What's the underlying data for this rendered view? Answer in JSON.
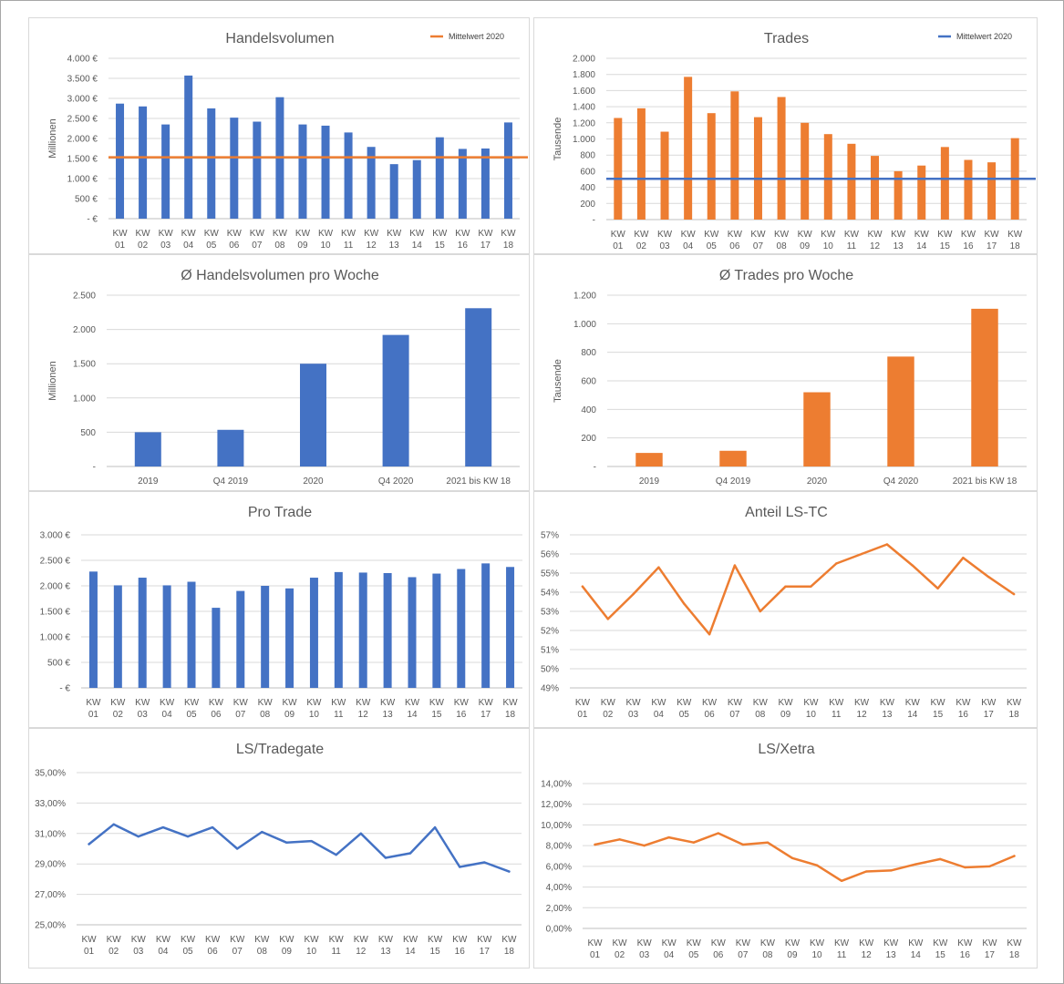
{
  "colors": {
    "blue": "#4472c4",
    "orange": "#ed7d31"
  },
  "chart_data": [
    {
      "id": "c1",
      "type": "bar",
      "title": "Handelsvolumen",
      "ylabel": "Millionen",
      "color": "#4472c4",
      "ylim": [
        0,
        4000
      ],
      "yticks": [
        0,
        500,
        1000,
        1500,
        2000,
        2500,
        3000,
        3500,
        4000
      ],
      "ytick_labels": [
        "-   €",
        "500 €",
        "1.000 €",
        "1.500 €",
        "2.000 €",
        "2.500 €",
        "3.000 €",
        "3.500 €",
        "4.000 €"
      ],
      "categories": [
        [
          "KW",
          "01"
        ],
        [
          "KW",
          "02"
        ],
        [
          "KW",
          "03"
        ],
        [
          "KW",
          "04"
        ],
        [
          "KW",
          "05"
        ],
        [
          "KW",
          "06"
        ],
        [
          "KW",
          "07"
        ],
        [
          "KW",
          "08"
        ],
        [
          "KW",
          "09"
        ],
        [
          "KW",
          "10"
        ],
        [
          "KW",
          "11"
        ],
        [
          "KW",
          "12"
        ],
        [
          "KW",
          "13"
        ],
        [
          "KW",
          "14"
        ],
        [
          "KW",
          "15"
        ],
        [
          "KW",
          "16"
        ],
        [
          "KW",
          "17"
        ],
        [
          "KW",
          "18"
        ]
      ],
      "values": [
        2870,
        2800,
        2350,
        3570,
        2750,
        2520,
        2420,
        3030,
        2350,
        2320,
        2150,
        1790,
        1360,
        1460,
        2030,
        1740,
        1750,
        2400
      ],
      "reference_line": {
        "name": "Mittelwert 2020",
        "value": 1530,
        "color": "#ed7d31"
      },
      "legend": "top-right"
    },
    {
      "id": "c2",
      "type": "bar",
      "title": "Trades",
      "ylabel": "Tausende",
      "color": "#ed7d31",
      "ylim": [
        0,
        2000
      ],
      "yticks": [
        0,
        200,
        400,
        600,
        800,
        1000,
        1200,
        1400,
        1600,
        1800,
        2000
      ],
      "ytick_labels": [
        "-",
        "200",
        "400",
        "600",
        "800",
        "1.000",
        "1.200",
        "1.400",
        "1.600",
        "1.800",
        "2.000"
      ],
      "categories": [
        [
          "KW",
          "01"
        ],
        [
          "KW",
          "02"
        ],
        [
          "KW",
          "03"
        ],
        [
          "KW",
          "04"
        ],
        [
          "KW",
          "05"
        ],
        [
          "KW",
          "06"
        ],
        [
          "KW",
          "07"
        ],
        [
          "KW",
          "08"
        ],
        [
          "KW",
          "09"
        ],
        [
          "KW",
          "10"
        ],
        [
          "KW",
          "11"
        ],
        [
          "KW",
          "12"
        ],
        [
          "KW",
          "13"
        ],
        [
          "KW",
          "14"
        ],
        [
          "KW",
          "15"
        ],
        [
          "KW",
          "16"
        ],
        [
          "KW",
          "17"
        ],
        [
          "KW",
          "18"
        ]
      ],
      "values": [
        1260,
        1380,
        1090,
        1770,
        1320,
        1590,
        1270,
        1520,
        1200,
        1060,
        940,
        790,
        600,
        670,
        900,
        740,
        710,
        1010
      ],
      "reference_line": {
        "name": "Mittelwert 2020",
        "value": 505,
        "color": "#4472c4"
      },
      "legend": "top-right"
    },
    {
      "id": "c3",
      "type": "bar",
      "title": "Ø Handelsvolumen pro Woche",
      "ylabel": "Millionen",
      "color": "#4472c4",
      "ylim": [
        0,
        2500
      ],
      "yticks": [
        0,
        500,
        1000,
        1500,
        2000,
        2500
      ],
      "ytick_labels": [
        "-",
        "500",
        "1.000",
        "1.500",
        "2.000",
        "2.500"
      ],
      "categories": [
        [
          "2019"
        ],
        [
          "Q4 2019"
        ],
        [
          "2020"
        ],
        [
          "Q4 2020"
        ],
        [
          "2021 bis KW 18"
        ]
      ],
      "values": [
        500,
        535,
        1500,
        1920,
        2310
      ]
    },
    {
      "id": "c4",
      "type": "bar",
      "title": "Ø Trades pro Woche",
      "ylabel": "Tausende",
      "color": "#ed7d31",
      "ylim": [
        0,
        1200
      ],
      "yticks": [
        0,
        200,
        400,
        600,
        800,
        1000,
        1200
      ],
      "ytick_labels": [
        "-",
        "200",
        "400",
        "600",
        "800",
        "1.000",
        "1.200"
      ],
      "categories": [
        [
          "2019"
        ],
        [
          "Q4 2019"
        ],
        [
          "2020"
        ],
        [
          "Q4 2020"
        ],
        [
          "2021 bis KW 18"
        ]
      ],
      "values": [
        95,
        110,
        520,
        770,
        1105
      ]
    },
    {
      "id": "c5",
      "type": "bar",
      "title": "Pro Trade",
      "ylabel": "",
      "color": "#4472c4",
      "ylim": [
        0,
        3000
      ],
      "yticks": [
        0,
        500,
        1000,
        1500,
        2000,
        2500,
        3000
      ],
      "ytick_labels": [
        "-   €",
        "500 €",
        "1.000 €",
        "1.500 €",
        "2.000 €",
        "2.500 €",
        "3.000 €"
      ],
      "categories": [
        [
          "KW",
          "01"
        ],
        [
          "KW",
          "02"
        ],
        [
          "KW",
          "03"
        ],
        [
          "KW",
          "04"
        ],
        [
          "KW",
          "05"
        ],
        [
          "KW",
          "06"
        ],
        [
          "KW",
          "07"
        ],
        [
          "KW",
          "08"
        ],
        [
          "KW",
          "09"
        ],
        [
          "KW",
          "10"
        ],
        [
          "KW",
          "11"
        ],
        [
          "KW",
          "12"
        ],
        [
          "KW",
          "13"
        ],
        [
          "KW",
          "14"
        ],
        [
          "KW",
          "15"
        ],
        [
          "KW",
          "16"
        ],
        [
          "KW",
          "17"
        ],
        [
          "KW",
          "18"
        ]
      ],
      "values": [
        2280,
        2010,
        2160,
        2010,
        2080,
        1570,
        1900,
        2000,
        1950,
        2160,
        2270,
        2260,
        2250,
        2170,
        2240,
        2330,
        2440,
        2370
      ]
    },
    {
      "id": "c6",
      "type": "line",
      "title": "Anteil LS-TC",
      "ylabel": "",
      "color": "#ed7d31",
      "ylim": [
        49,
        57
      ],
      "yticks": [
        49,
        50,
        51,
        52,
        53,
        54,
        55,
        56,
        57
      ],
      "ytick_labels": [
        "49%",
        "50%",
        "51%",
        "52%",
        "53%",
        "54%",
        "55%",
        "56%",
        "57%"
      ],
      "categories": [
        [
          "KW",
          "01"
        ],
        [
          "KW",
          "02"
        ],
        [
          "KW",
          "03"
        ],
        [
          "KW",
          "04"
        ],
        [
          "KW",
          "05"
        ],
        [
          "KW",
          "06"
        ],
        [
          "KW",
          "07"
        ],
        [
          "KW",
          "08"
        ],
        [
          "KW",
          "09"
        ],
        [
          "KW",
          "10"
        ],
        [
          "KW",
          "11"
        ],
        [
          "KW",
          "12"
        ],
        [
          "KW",
          "13"
        ],
        [
          "KW",
          "14"
        ],
        [
          "KW",
          "15"
        ],
        [
          "KW",
          "16"
        ],
        [
          "KW",
          "17"
        ],
        [
          "KW",
          "18"
        ]
      ],
      "values": [
        54.3,
        52.6,
        53.9,
        55.3,
        53.4,
        51.8,
        55.4,
        53.0,
        54.3,
        54.3,
        55.5,
        56.0,
        56.5,
        55.4,
        54.2,
        55.8,
        54.8,
        53.9
      ]
    },
    {
      "id": "c7",
      "type": "line",
      "title": "LS/Tradegate",
      "ylabel": "",
      "color": "#4472c4",
      "ylim": [
        25,
        35
      ],
      "yticks": [
        25,
        27,
        29,
        31,
        33,
        35
      ],
      "ytick_labels": [
        "25,00%",
        "27,00%",
        "29,00%",
        "31,00%",
        "33,00%",
        "35,00%"
      ],
      "categories": [
        [
          "KW",
          "01"
        ],
        [
          "KW",
          "02"
        ],
        [
          "KW",
          "03"
        ],
        [
          "KW",
          "04"
        ],
        [
          "KW",
          "05"
        ],
        [
          "KW",
          "06"
        ],
        [
          "KW",
          "07"
        ],
        [
          "KW",
          "08"
        ],
        [
          "KW",
          "09"
        ],
        [
          "KW",
          "10"
        ],
        [
          "KW",
          "11"
        ],
        [
          "KW",
          "12"
        ],
        [
          "KW",
          "13"
        ],
        [
          "KW",
          "14"
        ],
        [
          "KW",
          "15"
        ],
        [
          "KW",
          "16"
        ],
        [
          "KW",
          "17"
        ],
        [
          "KW",
          "18"
        ]
      ],
      "values": [
        30.3,
        31.6,
        30.8,
        31.4,
        30.8,
        31.4,
        30.0,
        31.1,
        30.4,
        30.5,
        29.6,
        31.0,
        29.4,
        29.7,
        31.4,
        28.8,
        29.1,
        28.5
      ]
    },
    {
      "id": "c8",
      "type": "line",
      "title": "LS/Xetra",
      "ylabel": "",
      "color": "#ed7d31",
      "ylim": [
        0,
        14
      ],
      "yticks": [
        0,
        2,
        4,
        6,
        8,
        10,
        12,
        14
      ],
      "ytick_labels": [
        "0,00%",
        "2,00%",
        "4,00%",
        "6,00%",
        "8,00%",
        "10,00%",
        "12,00%",
        "14,00%"
      ],
      "categories": [
        [
          "KW",
          "01"
        ],
        [
          "KW",
          "02"
        ],
        [
          "KW",
          "03"
        ],
        [
          "KW",
          "04"
        ],
        [
          "KW",
          "05"
        ],
        [
          "KW",
          "06"
        ],
        [
          "KW",
          "07"
        ],
        [
          "KW",
          "08"
        ],
        [
          "KW",
          "09"
        ],
        [
          "KW",
          "10"
        ],
        [
          "KW",
          "11"
        ],
        [
          "KW",
          "12"
        ],
        [
          "KW",
          "13"
        ],
        [
          "KW",
          "14"
        ],
        [
          "KW",
          "15"
        ],
        [
          "KW",
          "16"
        ],
        [
          "KW",
          "17"
        ],
        [
          "KW",
          "18"
        ]
      ],
      "values": [
        8.1,
        8.6,
        8.0,
        8.8,
        8.3,
        9.2,
        8.1,
        8.3,
        6.8,
        6.1,
        4.6,
        5.5,
        5.6,
        6.2,
        6.7,
        5.9,
        6.0,
        7.0
      ]
    }
  ]
}
